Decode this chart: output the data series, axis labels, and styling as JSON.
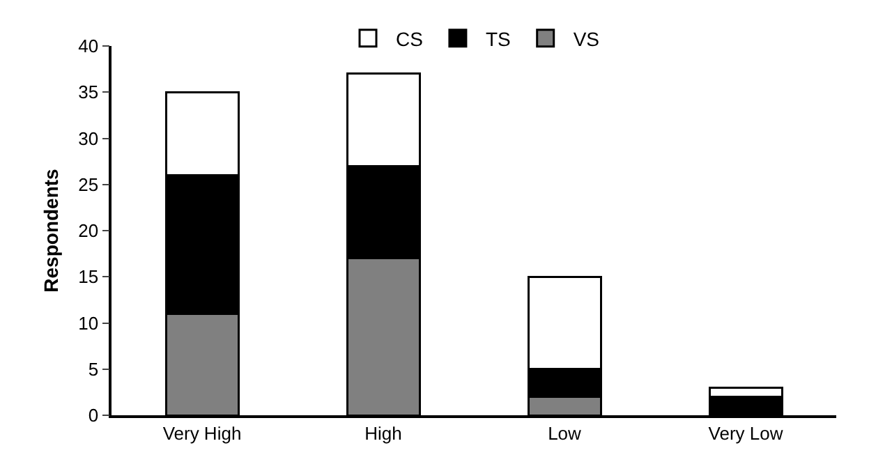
{
  "chart_data": {
    "type": "bar",
    "ylabel": "Respondents",
    "categories": [
      "Very High",
      "High",
      "Low",
      "Very Low"
    ],
    "stacked": true,
    "series": [
      {
        "name": "VS",
        "color": "#808080",
        "values": [
          11,
          17,
          2,
          0
        ]
      },
      {
        "name": "TS",
        "color": "#000000",
        "values": [
          15,
          10,
          3,
          2
        ]
      },
      {
        "name": "CS",
        "color": "#ffffff",
        "values": [
          9,
          10,
          10,
          1
        ]
      }
    ],
    "ylim": [
      0,
      40
    ],
    "yticks": [
      0,
      5,
      10,
      15,
      20,
      25,
      30,
      35,
      40
    ],
    "grid": false,
    "legend": "top"
  }
}
